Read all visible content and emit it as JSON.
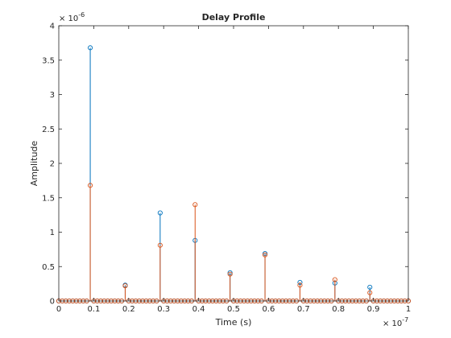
{
  "chart_data": {
    "type": "stem",
    "title": "Delay Profile",
    "xlabel": "Time (s)",
    "ylabel": "Amplitude",
    "xlim": [
      0,
      1e-07
    ],
    "ylim": [
      0,
      4e-06
    ],
    "x_ticks": [
      0,
      1e-08,
      2e-08,
      3e-08,
      4e-08,
      5e-08,
      6e-08,
      7e-08,
      8e-08,
      9e-08,
      1e-07
    ],
    "x_tick_labels": [
      "0",
      "0.1",
      "0.2",
      "0.3",
      "0.4",
      "0.5",
      "0.6",
      "0.7",
      "0.8",
      "0.9",
      "1"
    ],
    "y_ticks": [
      0,
      5e-07,
      1e-06,
      1.5e-06,
      2e-06,
      2.5e-06,
      3e-06,
      3.5e-06,
      4e-06
    ],
    "y_tick_labels": [
      "0",
      "0.5",
      "1",
      "1.5",
      "2",
      "2.5",
      "3",
      "3.5",
      "4"
    ],
    "x_exponent": {
      "base": "× 10",
      "power": "-7"
    },
    "y_exponent": {
      "base": "× 10",
      "power": "-6"
    },
    "grid": false,
    "sample_step": 1e-09,
    "series": [
      {
        "color": "#0072BD",
        "points": [
          {
            "x": 9e-09,
            "y": 3.68e-06
          },
          {
            "x": 1.9e-08,
            "y": 2.3e-07
          },
          {
            "x": 2.9e-08,
            "y": 1.28e-06
          },
          {
            "x": 3.9e-08,
            "y": 8.8e-07
          },
          {
            "x": 4.9e-08,
            "y": 4.1e-07
          },
          {
            "x": 5.9e-08,
            "y": 6.9e-07
          },
          {
            "x": 6.9e-08,
            "y": 2.7e-07
          },
          {
            "x": 7.9e-08,
            "y": 2.6e-07
          },
          {
            "x": 8.9e-08,
            "y": 2e-07
          }
        ]
      },
      {
        "color": "#D95319",
        "points": [
          {
            "x": 9e-09,
            "y": 1.68e-06
          },
          {
            "x": 1.9e-08,
            "y": 2.2e-07
          },
          {
            "x": 2.9e-08,
            "y": 8.1e-07
          },
          {
            "x": 3.9e-08,
            "y": 1.4e-06
          },
          {
            "x": 4.9e-08,
            "y": 3.9e-07
          },
          {
            "x": 5.9e-08,
            "y": 6.7e-07
          },
          {
            "x": 6.9e-08,
            "y": 2.3e-07
          },
          {
            "x": 7.9e-08,
            "y": 3.1e-07
          },
          {
            "x": 8.9e-08,
            "y": 1.2e-07
          }
        ]
      }
    ]
  }
}
